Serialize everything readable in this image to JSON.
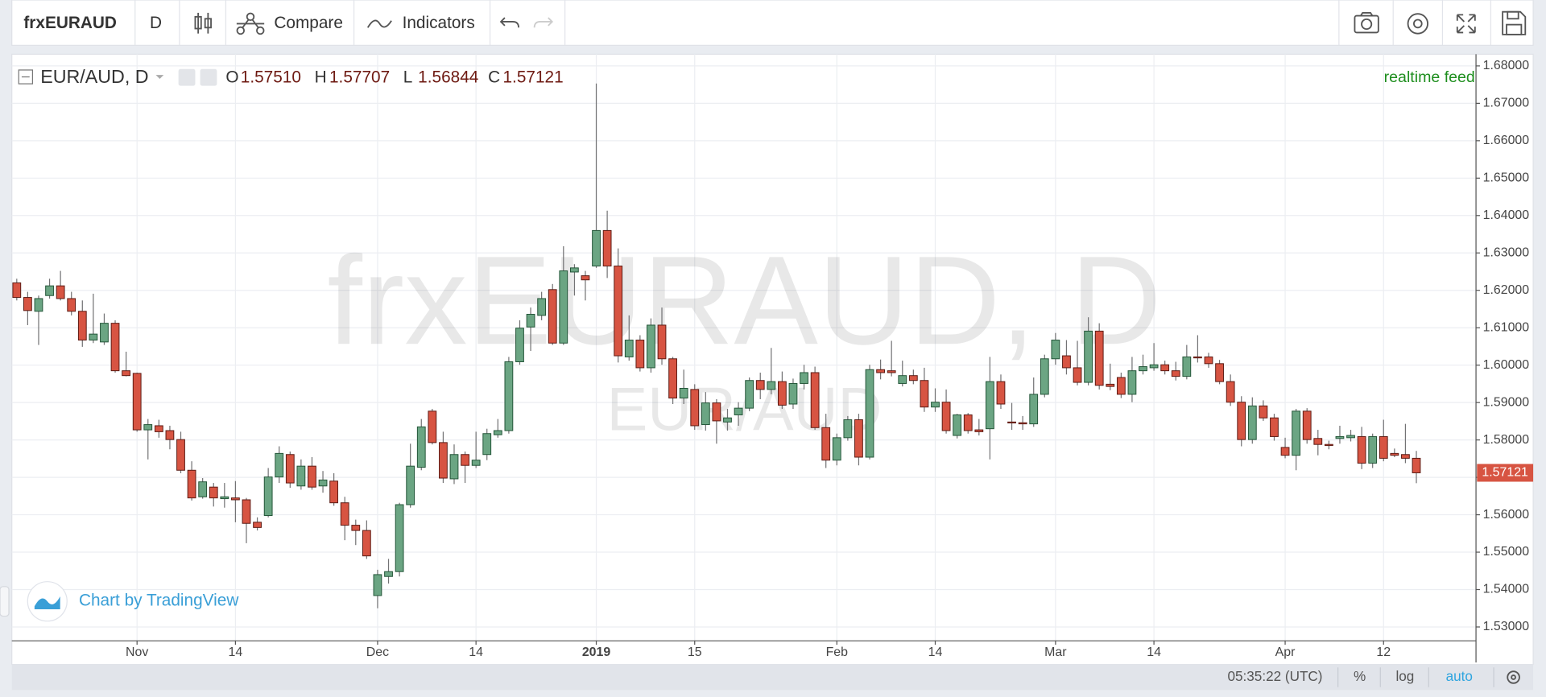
{
  "toolbar": {
    "symbol": "frxEURAUD",
    "interval": "D",
    "compare": "Compare",
    "indicators": "Indicators"
  },
  "chart_data": {
    "type": "candlestick",
    "title": "EUR/AUD, D",
    "ohlc_header": [
      {
        "key": "O",
        "value": "1.57510"
      },
      {
        "key": "H",
        "value": "1.57707"
      },
      {
        "key": "L",
        "value": "1.56844"
      },
      {
        "key": "C",
        "value": "1.57121"
      }
    ],
    "annotation": "realtime feed",
    "watermark": "frxEURAUD, D",
    "watermark_subtitle": "EUR/AUD",
    "attribution": "Chart by TradingView",
    "up_color": "#6ba583",
    "up_border": "#225437",
    "down_color": "#d75442",
    "down_border": "#5b1a13",
    "wick_color": "#737375",
    "grid": true,
    "ylim": [
      1.5263,
      1.6826
    ],
    "yticks": [
      {
        "value": 1.53,
        "label": "1.53000"
      },
      {
        "value": 1.54,
        "label": "1.54000"
      },
      {
        "value": 1.55,
        "label": "1.55000"
      },
      {
        "value": 1.56,
        "label": "1.56000"
      },
      {
        "value": 1.57,
        "label": "1.57000"
      },
      {
        "value": 1.58,
        "label": "1.58000"
      },
      {
        "value": 1.59,
        "label": "1.59000"
      },
      {
        "value": 1.6,
        "label": "1.60000"
      },
      {
        "value": 1.61,
        "label": "1.61000"
      },
      {
        "value": 1.62,
        "label": "1.62000"
      },
      {
        "value": 1.63,
        "label": "1.63000"
      },
      {
        "value": 1.64,
        "label": "1.64000"
      },
      {
        "value": 1.65,
        "label": "1.65000"
      },
      {
        "value": 1.66,
        "label": "1.66000"
      },
      {
        "value": 1.67,
        "label": "1.67000"
      },
      {
        "value": 1.68,
        "label": "1.68000"
      }
    ],
    "categories": [
      null,
      null,
      null,
      null,
      null,
      null,
      null,
      null,
      null,
      null,
      null,
      "Nov",
      null,
      null,
      null,
      null,
      null,
      null,
      null,
      null,
      "14",
      null,
      null,
      null,
      null,
      null,
      null,
      null,
      null,
      null,
      null,
      null,
      null,
      "Dec",
      null,
      null,
      null,
      null,
      null,
      null,
      null,
      null,
      "14",
      null,
      null,
      null,
      null,
      null,
      null,
      null,
      null,
      null,
      null,
      "2019",
      null,
      null,
      null,
      null,
      null,
      null,
      null,
      null,
      "15",
      null,
      null,
      null,
      null,
      null,
      null,
      null,
      null,
      null,
      null,
      null,
      null,
      "Feb",
      null,
      null,
      null,
      null,
      null,
      null,
      null,
      null,
      "14",
      null,
      null,
      null,
      null,
      null,
      null,
      null,
      null,
      null,
      null,
      "Mar",
      null,
      null,
      null,
      null,
      null,
      null,
      null,
      null,
      "14",
      null,
      null,
      null,
      null,
      null,
      null,
      null,
      null,
      null,
      null,
      null,
      "Apr",
      null,
      null,
      null,
      null,
      null,
      null,
      null,
      null,
      "12",
      null,
      null,
      null
    ],
    "open": [
      1.622,
      1.6181,
      1.6144,
      1.6186,
      1.6212,
      1.6178,
      1.6144,
      1.6067,
      1.6062,
      1.6112,
      1.5985,
      1.5978,
      1.5827,
      1.5838,
      1.5825,
      1.5801,
      1.5719,
      1.5648,
      1.5674,
      1.5643,
      1.5645,
      1.564,
      1.558,
      1.5598,
      1.5701,
      1.5761,
      1.5677,
      1.573,
      1.5677,
      1.569,
      1.5632,
      1.5572,
      1.5558,
      1.5384,
      1.5435,
      1.5448,
      1.5627,
      1.5727,
      1.5877,
      1.5793,
      1.5696,
      1.5761,
      1.5732,
      1.5761,
      1.5814,
      1.5825,
      1.6009,
      1.6102,
      1.6133,
      1.6202,
      1.6059,
      1.6249,
      1.6239,
      1.6265,
      1.636,
      1.6265,
      1.6022,
      1.6067,
      1.5993,
      1.6107,
      1.6017,
      1.5912,
      1.5935,
      1.5841,
      1.5899,
      1.5848,
      1.5867,
      1.5885,
      1.5959,
      1.5935,
      1.5956,
      1.5896,
      1.5951,
      1.598,
      1.5833,
      1.5746,
      1.5806,
      1.5854,
      1.5754,
      1.5988,
      1.5985,
      1.5951,
      1.5972,
      1.5959,
      1.5888,
      1.5901,
      1.5812,
      1.5867,
      1.5827,
      1.583,
      1.5956,
      1.5848,
      1.5846,
      1.5843,
      1.5922,
      1.6017,
      1.6025,
      1.5993,
      1.5954,
      1.6091,
      1.5949,
      1.5967,
      1.5922,
      1.5985,
      1.5993,
      1.6001,
      1.5985,
      1.597,
      1.6022,
      1.6022,
      1.6004,
      1.5956,
      1.5901,
      1.5801,
      1.5891,
      1.5859,
      1.578,
      1.5759,
      1.5877,
      1.5804,
      1.5788,
      1.5804,
      1.5806,
      1.5809,
      1.5738,
      1.5809,
      1.5764,
      1.5761,
      1.5751
    ],
    "high": [
      1.6231,
      1.6196,
      1.6186,
      1.6231,
      1.6252,
      1.6196,
      1.6173,
      1.6191,
      1.6138,
      1.612,
      1.6036,
      1.598,
      1.5856,
      1.5854,
      1.5838,
      1.5822,
      1.5743,
      1.5698,
      1.5685,
      1.5685,
      1.569,
      1.5645,
      1.5593,
      1.5725,
      1.5783,
      1.5769,
      1.5748,
      1.5754,
      1.5717,
      1.5711,
      1.5648,
      1.5587,
      1.5585,
      1.5453,
      1.5482,
      1.5632,
      1.579,
      1.5856,
      1.5883,
      1.5822,
      1.5788,
      1.5769,
      1.5822,
      1.583,
      1.5856,
      1.6022,
      1.612,
      1.6154,
      1.6196,
      1.6217,
      1.6318,
      1.627,
      1.6252,
      1.6753,
      1.6413,
      1.6312,
      1.6133,
      1.608,
      1.6125,
      1.6154,
      1.6022,
      1.5988,
      1.5949,
      1.5928,
      1.5909,
      1.5883,
      1.5901,
      1.5967,
      1.598,
      1.6046,
      1.5983,
      1.5964,
      1.6001,
      1.5996,
      1.587,
      1.5817,
      1.5864,
      1.587,
      1.6001,
      1.6015,
      1.6065,
      1.6012,
      1.5988,
      1.5993,
      1.5938,
      1.5935,
      1.587,
      1.5872,
      1.5856,
      1.6022,
      1.5975,
      1.5899,
      1.5864,
      1.5967,
      1.6028,
      1.6086,
      1.6067,
      1.6065,
      1.6128,
      1.6112,
      1.6004,
      1.598,
      1.6022,
      1.6028,
      1.6059,
      1.6012,
      1.6009,
      1.6054,
      1.608,
      1.6033,
      1.6014,
      1.5975,
      1.5917,
      1.5914,
      1.5906,
      1.587,
      1.5806,
      1.5883,
      1.5885,
      1.5827,
      1.5798,
      1.5838,
      1.5827,
      1.5835,
      1.5817,
      1.5854,
      1.5777,
      1.5843,
      1.57707
    ],
    "low": [
      1.6173,
      1.6107,
      1.6054,
      1.6178,
      1.6173,
      1.6133,
      1.6049,
      1.6059,
      1.6054,
      1.598,
      1.597,
      1.5822,
      1.5748,
      1.5806,
      1.5775,
      1.5711,
      1.5638,
      1.5643,
      1.5622,
      1.5619,
      1.558,
      1.5524,
      1.5558,
      1.5593,
      1.5685,
      1.5672,
      1.5667,
      1.5667,
      1.5659,
      1.5624,
      1.5532,
      1.5519,
      1.5482,
      1.535,
      1.5416,
      1.5435,
      1.5619,
      1.5719,
      1.5788,
      1.5685,
      1.5682,
      1.5685,
      1.5725,
      1.5746,
      1.5806,
      1.5817,
      1.6001,
      1.6038,
      1.612,
      1.6054,
      1.6054,
      1.6186,
      1.6173,
      1.626,
      1.6233,
      1.6007,
      1.6012,
      1.5983,
      1.598,
      1.6001,
      1.5896,
      1.5896,
      1.5827,
      1.5825,
      1.579,
      1.5825,
      1.5838,
      1.5877,
      1.5909,
      1.5922,
      1.5883,
      1.5883,
      1.5935,
      1.5827,
      1.5725,
      1.5732,
      1.5798,
      1.5732,
      1.5748,
      1.5962,
      1.597,
      1.5943,
      1.5949,
      1.5875,
      1.5875,
      1.5817,
      1.5804,
      1.5817,
      1.5812,
      1.5748,
      1.5883,
      1.5827,
      1.5827,
      1.5835,
      1.5914,
      1.6001,
      1.5975,
      1.5946,
      1.5946,
      1.5935,
      1.5933,
      1.5912,
      1.5901,
      1.5975,
      1.5985,
      1.5975,
      1.5959,
      1.5962,
      1.6007,
      1.5993,
      1.5949,
      1.5891,
      1.5783,
      1.579,
      1.5851,
      1.5798,
      1.5751,
      1.5719,
      1.579,
      1.5759,
      1.5775,
      1.579,
      1.5796,
      1.5722,
      1.5725,
      1.5743,
      1.5754,
      1.5738,
      1.56844
    ],
    "close": [
      1.6181,
      1.6146,
      1.6178,
      1.6212,
      1.6178,
      1.6144,
      1.6067,
      1.6083,
      1.6112,
      1.5985,
      1.5972,
      1.5827,
      1.5841,
      1.5822,
      1.5801,
      1.5719,
      1.5645,
      1.5688,
      1.5645,
      1.5648,
      1.564,
      1.5577,
      1.5566,
      1.5701,
      1.5764,
      1.5685,
      1.573,
      1.5674,
      1.5693,
      1.5632,
      1.5572,
      1.5558,
      1.549,
      1.544,
      1.5448,
      1.5627,
      1.573,
      1.5835,
      1.5793,
      1.5698,
      1.5761,
      1.5732,
      1.5746,
      1.5817,
      1.5825,
      1.6009,
      1.6099,
      1.6136,
      1.6178,
      1.6059,
      1.6252,
      1.626,
      1.6228,
      1.636,
      1.6265,
      1.6025,
      1.6067,
      1.5993,
      1.6107,
      1.6017,
      1.5912,
      1.5938,
      1.5838,
      1.5899,
      1.5851,
      1.5859,
      1.5885,
      1.5959,
      1.5935,
      1.5956,
      1.5893,
      1.5951,
      1.598,
      1.5833,
      1.5746,
      1.5806,
      1.5854,
      1.5754,
      1.5988,
      1.598,
      1.598,
      1.5972,
      1.5959,
      1.5888,
      1.5901,
      1.5825,
      1.5867,
      1.5825,
      1.5822,
      1.5956,
      1.5896,
      1.5846,
      1.5843,
      1.5922,
      1.6017,
      1.6067,
      1.5993,
      1.5954,
      1.6091,
      1.5946,
      1.5943,
      1.5922,
      1.5985,
      1.5996,
      1.6001,
      1.5985,
      1.597,
      1.6022,
      1.602,
      1.6004,
      1.5956,
      1.5901,
      1.5801,
      1.5891,
      1.5859,
      1.5809,
      1.5759,
      1.5877,
      1.5801,
      1.5788,
      1.5785,
      1.5809,
      1.5812,
      1.5738,
      1.5809,
      1.5751,
      1.5759,
      1.5751,
      1.57121
    ]
  },
  "status_bar": {
    "time": "05:35:22 (UTC)",
    "percent": "%",
    "log": "log",
    "auto": "auto"
  }
}
